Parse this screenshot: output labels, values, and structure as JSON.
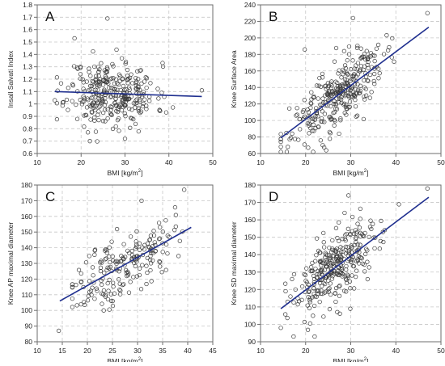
{
  "figure": {
    "description_hidden": ""
  },
  "colors": {
    "marker_stroke": "#3a3a3a",
    "fit_line": "#1f2f8f",
    "grid": "#c8c8c8",
    "axis": "#6e6e6e"
  },
  "chart_data": [
    {
      "panel_label": "A",
      "type": "scatter",
      "xlabel": "BMI [kg/m",
      "xlabel_sup": "2",
      "xlabel_tail": "]",
      "ylabel": "Insall Salvati Index",
      "xlim": [
        10,
        50
      ],
      "ylim": [
        0.6,
        1.8
      ],
      "xticks": [
        10,
        20,
        30,
        40,
        50
      ],
      "yticks": [
        0.6,
        0.7,
        0.8,
        0.9,
        1.0,
        1.1,
        1.2,
        1.3,
        1.4,
        1.5,
        1.6,
        1.7,
        1.8
      ],
      "ytick_labels": [
        "0.6",
        "0.7",
        "0.8",
        "0.9",
        "1",
        "1.1",
        "1.2",
        "1.3",
        "1.4",
        "1.5",
        "1.6",
        "1.7",
        "1.8"
      ],
      "grid": true,
      "fit": {
        "x": [
          14,
          47.5
        ],
        "y": [
          1.1,
          1.06
        ]
      },
      "gen": {
        "n": 320,
        "seed": 11,
        "xmean": 27,
        "xsd": 5,
        "xmin": 14.5,
        "xmax": 47.5,
        "a": 1.115,
        "b": -0.0011,
        "noise": 0.13,
        "ymin": 0.66,
        "ymax": 1.7
      },
      "points": [
        [
          26,
          1.69
        ],
        [
          18.5,
          1.53
        ],
        [
          14,
          1.03
        ],
        [
          47.5,
          1.11
        ],
        [
          22,
          0.7
        ],
        [
          30,
          0.72
        ]
      ]
    },
    {
      "panel_label": "B",
      "type": "scatter",
      "xlabel": "BMI [kg/m",
      "xlabel_sup": "2",
      "xlabel_tail": "]",
      "ylabel": "Knee Surface Area",
      "xlim": [
        10,
        50
      ],
      "ylim": [
        60,
        240
      ],
      "xticks": [
        10,
        20,
        30,
        40,
        50
      ],
      "yticks": [
        60,
        80,
        100,
        120,
        140,
        160,
        180,
        200,
        220,
        240
      ],
      "grid": true,
      "fit": {
        "x": [
          14.5,
          47.3
        ],
        "y": [
          79,
          213
        ]
      },
      "gen": {
        "n": 320,
        "seed": 23,
        "xmean": 27,
        "xsd": 5,
        "xmin": 14.5,
        "xmax": 47.5,
        "a": 20,
        "b": 4.08,
        "noise": 19,
        "ymin": 62,
        "ymax": 232
      },
      "points": [
        [
          47,
          230
        ],
        [
          14.5,
          62
        ],
        [
          19.8,
          186
        ],
        [
          30.5,
          224
        ]
      ]
    },
    {
      "panel_label": "C",
      "type": "scatter",
      "xlabel": "BMI [kg/m",
      "xlabel_sup": "2",
      "xlabel_tail": "]",
      "ylabel": "Knee AP maximal diameter",
      "xlim": [
        10,
        45
      ],
      "ylim": [
        80,
        180
      ],
      "xticks": [
        10,
        15,
        20,
        25,
        30,
        35,
        40,
        45
      ],
      "yticks": [
        80,
        90,
        100,
        110,
        120,
        130,
        140,
        150,
        160,
        170,
        180
      ],
      "grid": true,
      "fit": {
        "x": [
          14.5,
          40.7
        ],
        "y": [
          106,
          153
        ]
      },
      "gen": {
        "n": 200,
        "seed": 37,
        "xmean": 27,
        "xsd": 5,
        "xmin": 17,
        "xmax": 41,
        "a": 80,
        "b": 1.79,
        "noise": 10.5,
        "ymin": 100,
        "ymax": 170
      },
      "points": [
        [
          14.3,
          87
        ],
        [
          39.3,
          177
        ],
        [
          30.8,
          170
        ]
      ]
    },
    {
      "panel_label": "D",
      "type": "scatter",
      "xlabel": "BMI [kg/m",
      "xlabel_sup": "2",
      "xlabel_tail": "]",
      "ylabel": "Knee SD maximal diameter",
      "xlim": [
        10,
        50
      ],
      "ylim": [
        90,
        180
      ],
      "xticks": [
        10,
        20,
        30,
        40,
        50
      ],
      "yticks": [
        90,
        100,
        110,
        120,
        130,
        140,
        150,
        160,
        170,
        180
      ],
      "grid": true,
      "fit": {
        "x": [
          14.5,
          47.3
        ],
        "y": [
          109,
          173
        ]
      },
      "gen": {
        "n": 320,
        "seed": 53,
        "xmean": 27,
        "xsd": 5,
        "xmin": 15.5,
        "xmax": 47.5,
        "a": 80.7,
        "b": 1.95,
        "noise": 10,
        "ymin": 93,
        "ymax": 176
      },
      "points": [
        [
          47,
          178
        ],
        [
          14.5,
          98
        ],
        [
          22,
          93
        ],
        [
          29.5,
          174
        ]
      ]
    }
  ]
}
